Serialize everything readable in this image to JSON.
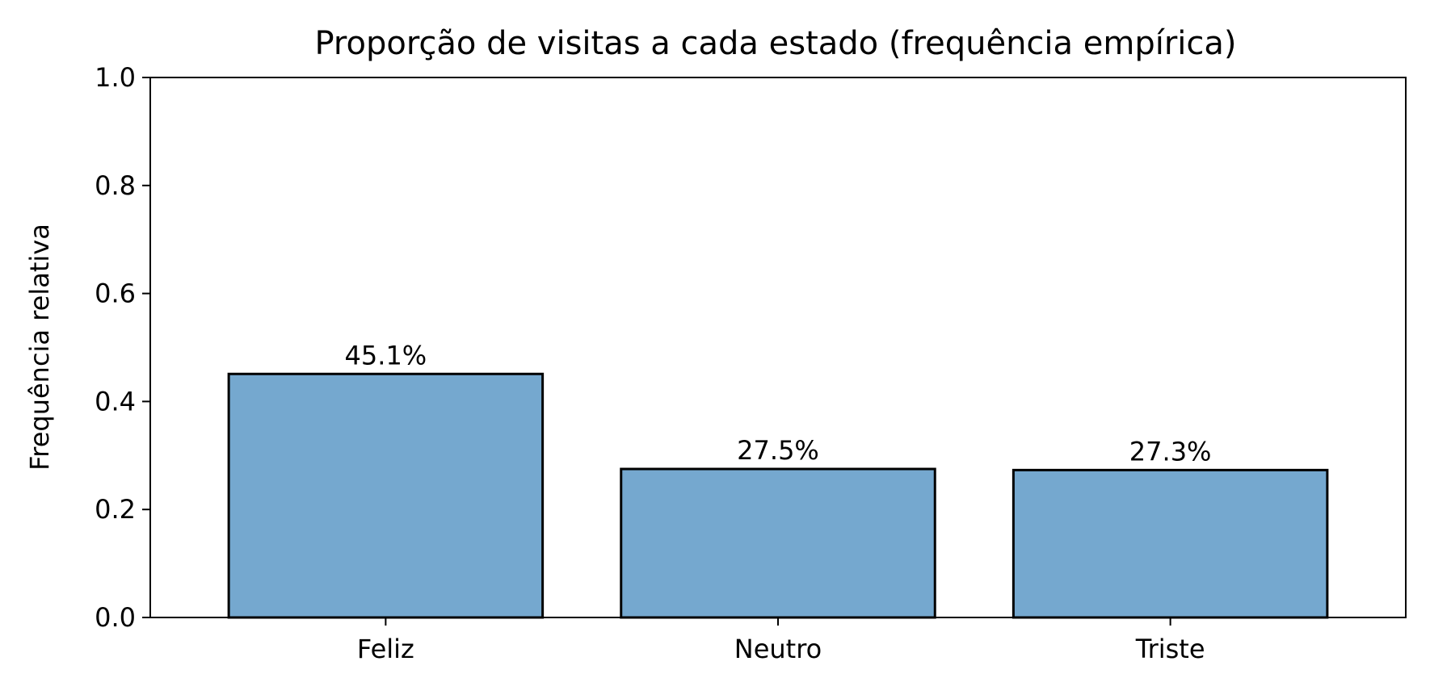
{
  "chart_data": {
    "type": "bar",
    "title": "Proporção de visitas a cada estado (frequência empírica)",
    "xlabel": "",
    "ylabel": "Frequência relativa",
    "categories": [
      "Feliz",
      "Neutro",
      "Triste"
    ],
    "values": [
      0.451,
      0.275,
      0.273
    ],
    "data_labels": [
      "45.1%",
      "27.5%",
      "27.3%"
    ],
    "ylim": [
      0,
      1.0
    ],
    "yticks": [
      0.0,
      0.2,
      0.4,
      0.6,
      0.8,
      1.0
    ],
    "ytick_labels": [
      "0.0",
      "0.2",
      "0.4",
      "0.6",
      "0.8",
      "1.0"
    ],
    "grid": false,
    "legend": "none",
    "colors": {
      "bar_fill": "#75a8cf",
      "bar_edge": "#000000"
    }
  }
}
